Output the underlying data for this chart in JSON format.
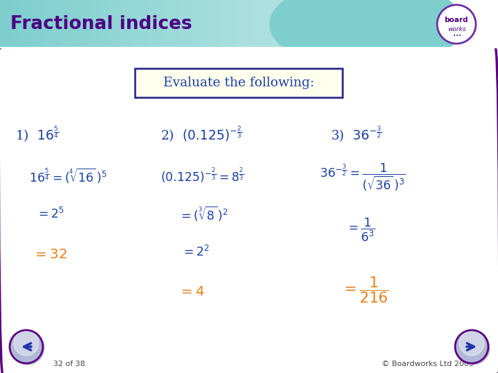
{
  "title": "Fractional indices",
  "header_bg_color": "#7ecece",
  "header_text_color": "#4b0082",
  "body_bg_color": "#ffffff",
  "evaluate_box_text": "Evaluate the following:",
  "evaluate_box_bg": "#ffffee",
  "evaluate_box_border": "#2e2e8f",
  "blue_color": "#1a3fa3",
  "orange_color": "#e8801a",
  "border_color": "#5a0080",
  "footer_text_left": "32 of 38",
  "footer_text_right": "© Boardworks Ltd 2005"
}
